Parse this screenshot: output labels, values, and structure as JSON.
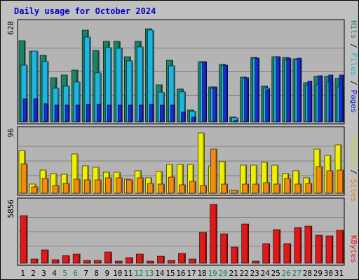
{
  "title": "Daily usage for October 2024",
  "colors": {
    "background": "#c0c0c0",
    "panel": "#b4b4b4",
    "title": "#0000cc",
    "hits": "#1d8366",
    "files": "#20b4e0",
    "pages": "#1a2bd8",
    "visits": "#f0f000",
    "sites": "#f48a10",
    "kbytes": "#e01818",
    "weekend": "#108060",
    "weekday": "#000000"
  },
  "legend_top": [
    {
      "text": "Hits",
      "color": "#1d8366"
    },
    {
      "text": " / ",
      "color": "#000000"
    },
    {
      "text": "Files",
      "color": "#20b4e0"
    },
    {
      "text": " / ",
      "color": "#000000"
    },
    {
      "text": "Pages",
      "color": "#1a2bd8"
    }
  ],
  "legend_mid": [
    {
      "text": "Visits",
      "color": "#cccc00"
    },
    {
      "text": " / ",
      "color": "#000000"
    },
    {
      "text": "Sites",
      "color": "#e07a10"
    }
  ],
  "legend_bottom": [
    {
      "text": "KBytes",
      "color": "#e01818"
    }
  ],
  "chart_data": [
    {
      "type": "bar",
      "panel": "hits-files-pages",
      "ymax_label": "628",
      "ylim": [
        0,
        628
      ],
      "categories": [
        "1",
        "2",
        "3",
        "4",
        "5",
        "6",
        "7",
        "8",
        "9",
        "10",
        "11",
        "12",
        "13",
        "14",
        "15",
        "16",
        "17",
        "18",
        "19",
        "20",
        "21",
        "22",
        "23",
        "24",
        "25",
        "26",
        "27",
        "28",
        "29",
        "30",
        "31"
      ],
      "series": [
        {
          "name": "Hits",
          "values": [
            534,
            463,
            436,
            290,
            306,
            337,
            602,
            467,
            527,
            529,
            428,
            528,
            611,
            243,
            402,
            215,
            78,
            395,
            229,
            375,
            32,
            293,
            422,
            236,
            425,
            420,
            413,
            257,
            298,
            298,
            282
          ]
        },
        {
          "name": "Files",
          "values": [
            372,
            463,
            396,
            222,
            234,
            263,
            553,
            319,
            484,
            482,
            399,
            492,
            600,
            192,
            366,
            199,
            69,
            388,
            221,
            369,
            27,
            286,
            417,
            221,
            427,
            403,
            409,
            238,
            242,
            260,
            230
          ]
        },
        {
          "name": "Pages",
          "values": [
            150,
            150,
            120,
            110,
            108,
            110,
            115,
            115,
            112,
            112,
            110,
            112,
            115,
            108,
            112,
            66,
            30,
            395,
            230,
            373,
            8,
            290,
            418,
            210,
            428,
            418,
            418,
            265,
            304,
            306,
            306
          ]
        }
      ]
    },
    {
      "type": "bar",
      "panel": "visits-sites",
      "ymax_label": "96",
      "ylim": [
        0,
        96
      ],
      "categories": [
        "1",
        "2",
        "3",
        "4",
        "5",
        "6",
        "7",
        "8",
        "9",
        "10",
        "11",
        "12",
        "13",
        "14",
        "15",
        "16",
        "17",
        "18",
        "19",
        "20",
        "21",
        "22",
        "23",
        "24",
        "25",
        "26",
        "27",
        "28",
        "29",
        "30",
        "31"
      ],
      "series": [
        {
          "name": "Visits",
          "values": [
            68,
            15,
            37,
            31,
            30,
            63,
            43,
            41,
            33,
            33,
            22,
            36,
            25,
            35,
            46,
            46,
            46,
            96,
            44,
            50,
            5,
            45,
            45,
            49,
            45,
            31,
            36,
            24,
            70,
            60,
            77
          ]
        },
        {
          "name": "Sites",
          "values": [
            47,
            10,
            23,
            12,
            16,
            22,
            21,
            21,
            25,
            24,
            21,
            24,
            16,
            14,
            26,
            13,
            19,
            12,
            70,
            15,
            4,
            15,
            15,
            17,
            15,
            23,
            14,
            16,
            42,
            36,
            37
          ]
        }
      ]
    },
    {
      "type": "bar",
      "panel": "kbytes",
      "ymax_label": "5856",
      "ylim": [
        0,
        5856
      ],
      "categories": [
        "1",
        "2",
        "3",
        "4",
        "5",
        "6",
        "7",
        "8",
        "9",
        "10",
        "11",
        "12",
        "13",
        "14",
        "15",
        "16",
        "17",
        "18",
        "19",
        "20",
        "21",
        "22",
        "23",
        "24",
        "25",
        "26",
        "27",
        "28",
        "29",
        "30",
        "31"
      ],
      "series": [
        {
          "name": "KBytes",
          "values": [
            4738,
            396,
            1313,
            341,
            786,
            929,
            269,
            269,
            1091,
            237,
            575,
            878,
            234,
            671,
            258,
            1008,
            397,
            3046,
            5856,
            2909,
            1609,
            3904,
            201,
            1975,
            3379,
            1926,
            3542,
            3697,
            2784,
            2705,
            3300
          ]
        }
      ]
    }
  ]
}
